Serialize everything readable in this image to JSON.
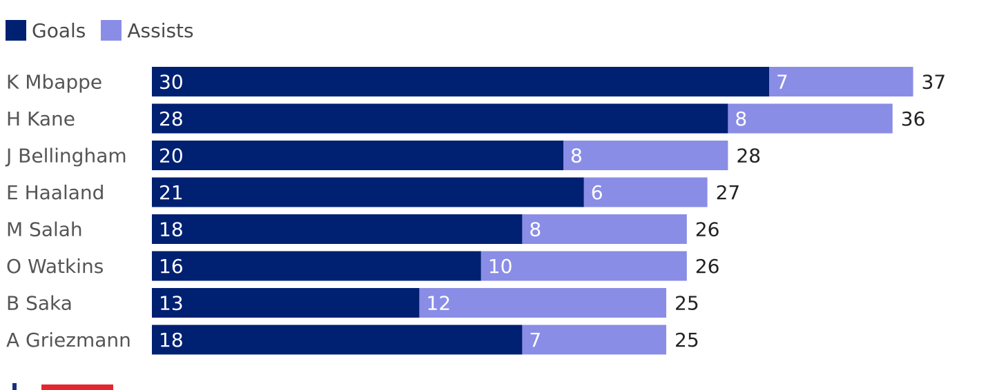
{
  "legend": [
    {
      "label": "Goals",
      "color": "#002072"
    },
    {
      "label": "Assists",
      "color": "#8a8de6"
    }
  ],
  "chart_data": {
    "type": "bar",
    "orientation": "horizontal",
    "stacked": true,
    "categories": [
      "K Mbappe",
      "H Kane",
      "J Bellingham",
      "E Haaland",
      "M Salah",
      "O Watkins",
      "B Saka",
      "A Griezmann"
    ],
    "series": [
      {
        "name": "Goals",
        "color": "#002072",
        "values": [
          30,
          28,
          20,
          21,
          18,
          16,
          13,
          18
        ]
      },
      {
        "name": "Assists",
        "color": "#8a8de6",
        "values": [
          7,
          8,
          8,
          6,
          8,
          10,
          12,
          7
        ]
      }
    ],
    "totals": [
      37,
      36,
      28,
      27,
      26,
      26,
      25,
      25
    ],
    "legend_position": "top-left",
    "grid": false
  }
}
